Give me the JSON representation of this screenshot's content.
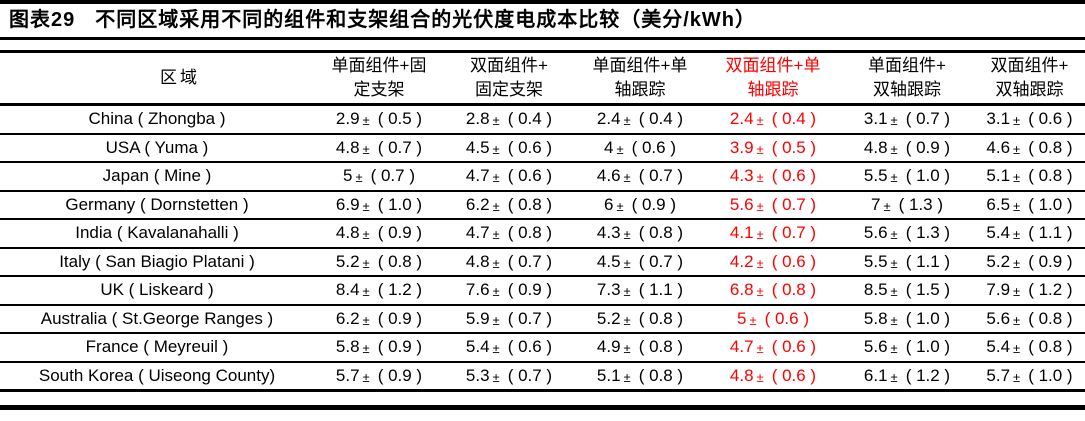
{
  "title": {
    "label": "图表29",
    "text": "不同区域采用不同的组件和支架组合的光伏度电成本比较（美分/kWh）"
  },
  "colors": {
    "highlight_red": "#ff0000",
    "rule_black": "#000000"
  },
  "table": {
    "region_header": "区域",
    "columns": [
      {
        "lines": [
          "单面组件+固",
          "定支架"
        ],
        "highlight": false
      },
      {
        "lines": [
          "双面组件+",
          "固定支架"
        ],
        "highlight": false
      },
      {
        "lines": [
          "单面组件+单",
          "轴跟踪"
        ],
        "highlight": false
      },
      {
        "lines": [
          "双面组件+单",
          "轴跟踪"
        ],
        "highlight": true
      },
      {
        "lines": [
          "单面组件+",
          "双轴跟踪"
        ],
        "highlight": false
      },
      {
        "lines": [
          "双面组件+",
          "双轴跟踪"
        ],
        "highlight": false
      }
    ],
    "rows": [
      {
        "region": "China ( Zhongba )",
        "values": [
          "2.9 ± ( 0.5 )",
          "2.8 ± ( 0.4 )",
          "2.4 ± ( 0.4 )",
          "2.4 ± ( 0.4 )",
          "3.1 ± ( 0.7 )",
          "3.1 ± ( 0.6 )"
        ]
      },
      {
        "region": "USA ( Yuma )",
        "values": [
          "4.8 ± ( 0.7 )",
          "4.5 ± ( 0.6 )",
          "4 ± ( 0.6 )",
          "3.9 ± ( 0.5 )",
          "4.8 ± ( 0.9 )",
          "4.6 ± ( 0.8 )"
        ]
      },
      {
        "region": "Japan ( Mine )",
        "values": [
          "5 ± ( 0.7 )",
          "4.7 ± ( 0.6 )",
          "4.6 ± ( 0.7 )",
          "4.3 ± ( 0.6 )",
          "5.5 ± ( 1.0 )",
          "5.1 ± ( 0.8 )"
        ]
      },
      {
        "region": "Germany ( Dornstetten )",
        "values": [
          "6.9 ± ( 1.0 )",
          "6.2 ± ( 0.8 )",
          "6 ± ( 0.9 )",
          "5.6 ± ( 0.7 )",
          "7 ± ( 1.3 )",
          "6.5 ± ( 1.0 )"
        ]
      },
      {
        "region": "India ( Kavalanahalli )",
        "values": [
          "4.8 ± ( 0.9 )",
          "4.7 ± ( 0.8 )",
          "4.3 ± ( 0.8 )",
          "4.1 ± ( 0.7 )",
          "5.6 ± ( 1.3 )",
          "5.4 ± ( 1.1 )"
        ]
      },
      {
        "region": "Italy ( San Biagio Platani )",
        "values": [
          "5.2 ± ( 0.8 )",
          "4.8 ± ( 0.7 )",
          "4.5 ± ( 0.7 )",
          "4.2 ± ( 0.6 )",
          "5.5 ± ( 1.1 )",
          "5.2 ± ( 0.9 )"
        ]
      },
      {
        "region": "UK ( Liskeard )",
        "values": [
          "8.4 ± ( 1.2 )",
          "7.6 ± ( 0.9 )",
          "7.3 ± ( 1.1 )",
          "6.8 ± ( 0.8 )",
          "8.5 ± ( 1.5 )",
          "7.9 ± ( 1.2 )"
        ]
      },
      {
        "region": "Australia ( St.George Ranges )",
        "values": [
          "6.2 ± ( 0.9 )",
          "5.9 ± ( 0.7 )",
          "5.2 ± ( 0.8 )",
          "5 ± ( 0.6 )",
          "5.8 ± ( 1.0 )",
          "5.6 ± ( 0.8 )"
        ]
      },
      {
        "region": "France ( Meyreuil )",
        "values": [
          "5.8 ± ( 0.9 )",
          "5.4 ± ( 0.6 )",
          "4.9 ± ( 0.8 )",
          "4.7 ± ( 0.6 )",
          "5.6 ± ( 1.0 )",
          "5.4 ± ( 0.8 )"
        ]
      },
      {
        "region": "South Korea ( Uiseong County)",
        "values": [
          "5.7 ± ( 0.9 )",
          "5.3 ± ( 0.7 )",
          "5.1 ± ( 0.8 )",
          "4.8 ± ( 0.6 )",
          "6.1 ± ( 1.2 )",
          "5.7 ± ( 1.0 )"
        ]
      }
    ]
  }
}
